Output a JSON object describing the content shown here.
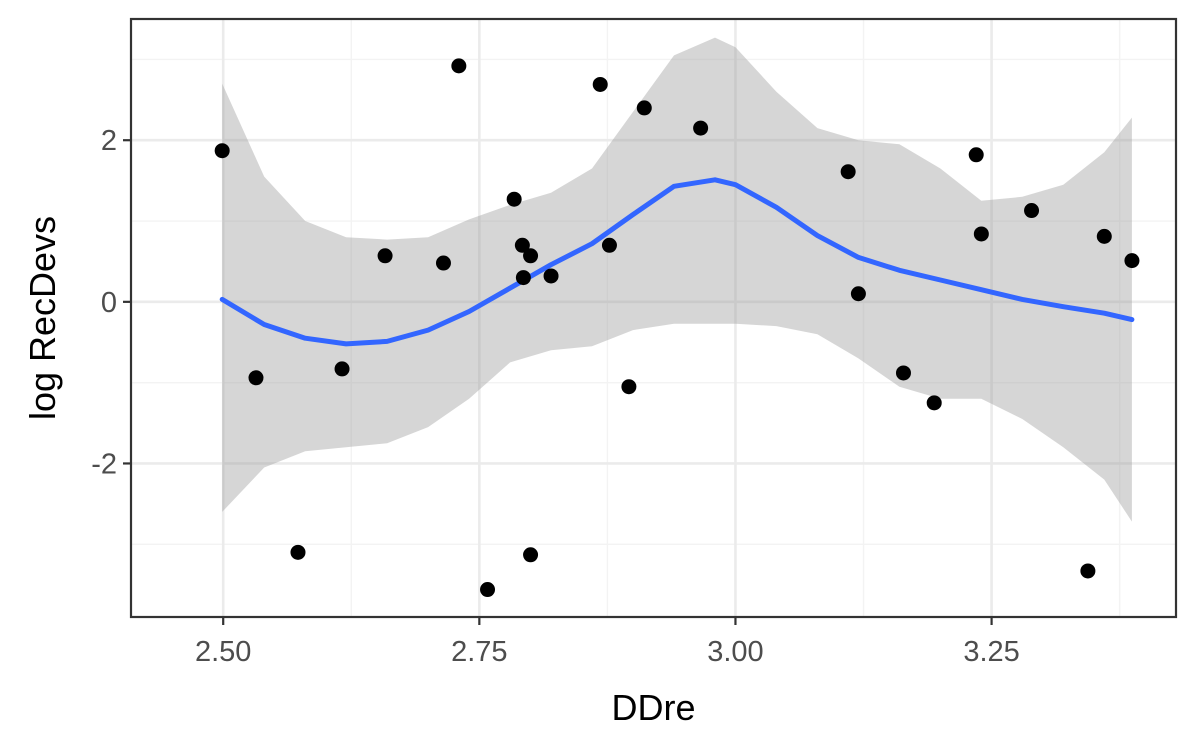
{
  "chart_data": {
    "type": "scatter",
    "title": "",
    "xlabel": "DDre",
    "ylabel": "log RecDevs",
    "xlim": [
      2.41,
      3.43
    ],
    "ylim": [
      -3.9,
      3.5
    ],
    "x_ticks": [
      2.5,
      2.75,
      3.0,
      3.25
    ],
    "x_tick_labels": [
      "2.50",
      "2.75",
      "3.00",
      "3.25"
    ],
    "y_ticks": [
      -2,
      0,
      2
    ],
    "y_tick_labels": [
      "-2",
      "0",
      "2"
    ],
    "grid": true,
    "points": [
      {
        "x": 2.499,
        "y": 1.87
      },
      {
        "x": 2.532,
        "y": -0.94
      },
      {
        "x": 2.573,
        "y": -3.1
      },
      {
        "x": 2.616,
        "y": -0.83
      },
      {
        "x": 2.658,
        "y": 0.57
      },
      {
        "x": 2.715,
        "y": 0.48
      },
      {
        "x": 2.73,
        "y": 2.92
      },
      {
        "x": 2.758,
        "y": -3.56
      },
      {
        "x": 2.784,
        "y": 1.27
      },
      {
        "x": 2.792,
        "y": 0.7
      },
      {
        "x": 2.793,
        "y": 0.3
      },
      {
        "x": 2.8,
        "y": 0.57
      },
      {
        "x": 2.8,
        "y": -3.13
      },
      {
        "x": 2.82,
        "y": 0.32
      },
      {
        "x": 2.868,
        "y": 2.69
      },
      {
        "x": 2.877,
        "y": 0.7
      },
      {
        "x": 2.896,
        "y": -1.05
      },
      {
        "x": 2.911,
        "y": 2.4
      },
      {
        "x": 2.966,
        "y": 2.15
      },
      {
        "x": 3.11,
        "y": 1.61
      },
      {
        "x": 3.12,
        "y": 0.1
      },
      {
        "x": 3.164,
        "y": -0.88
      },
      {
        "x": 3.194,
        "y": -1.25
      },
      {
        "x": 3.235,
        "y": 1.82
      },
      {
        "x": 3.24,
        "y": 0.84
      },
      {
        "x": 3.289,
        "y": 1.13
      },
      {
        "x": 3.344,
        "y": -3.33
      },
      {
        "x": 3.36,
        "y": 0.81
      },
      {
        "x": 3.387,
        "y": 0.51
      }
    ],
    "smooth": {
      "x": [
        2.499,
        2.54,
        2.58,
        2.62,
        2.66,
        2.7,
        2.74,
        2.78,
        2.82,
        2.86,
        2.9,
        2.94,
        2.98,
        3.0,
        3.04,
        3.08,
        3.12,
        3.16,
        3.2,
        3.24,
        3.28,
        3.32,
        3.36,
        3.387
      ],
      "y": [
        0.03,
        -0.28,
        -0.45,
        -0.52,
        -0.49,
        -0.35,
        -0.12,
        0.17,
        0.46,
        0.72,
        1.08,
        1.43,
        1.51,
        1.45,
        1.17,
        0.82,
        0.55,
        0.39,
        0.27,
        0.15,
        0.03,
        -0.06,
        -0.14,
        -0.22
      ],
      "lower": [
        -2.6,
        -2.05,
        -1.85,
        -1.8,
        -1.75,
        -1.55,
        -1.2,
        -0.75,
        -0.6,
        -0.55,
        -0.35,
        -0.27,
        -0.27,
        -0.27,
        -0.3,
        -0.4,
        -0.7,
        -1.05,
        -1.2,
        -1.2,
        -1.45,
        -1.8,
        -2.2,
        -2.72
      ],
      "upper": [
        2.7,
        1.55,
        1.0,
        0.8,
        0.77,
        0.8,
        1.02,
        1.2,
        1.35,
        1.65,
        2.35,
        3.05,
        3.27,
        3.15,
        2.6,
        2.15,
        2.0,
        1.95,
        1.65,
        1.25,
        1.3,
        1.45,
        1.85,
        2.28
      ]
    },
    "colors": {
      "points": "#000000",
      "line": "#3366FF",
      "ribbon": "#999999",
      "grid_major": "#EBEBEB",
      "grid_minor": "#F3F3F3",
      "panel_border": "#333333"
    }
  }
}
